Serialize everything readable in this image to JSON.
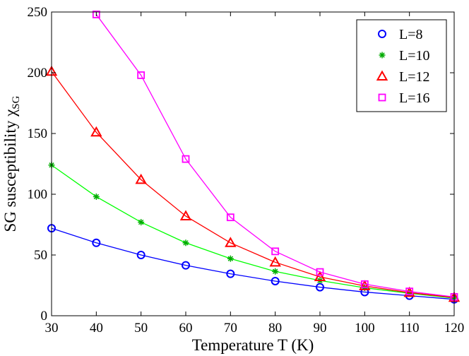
{
  "chart_data": {
    "type": "line",
    "xlabel": "Temperature T (K)",
    "ylabel": "SG susceptibility χ",
    "ylabel_sub": "SG",
    "xlim": [
      30,
      120
    ],
    "ylim": [
      0,
      250
    ],
    "xticks": [
      "30",
      "40",
      "50",
      "60",
      "70",
      "80",
      "90",
      "100",
      "110",
      "120"
    ],
    "yticks": [
      "0",
      "50",
      "100",
      "150",
      "200",
      "250"
    ],
    "legend_position": "top-right",
    "grid": false,
    "x": [
      30,
      40,
      50,
      60,
      70,
      80,
      90,
      100,
      110,
      120
    ],
    "series": [
      {
        "name": "L=8",
        "marker": "circle",
        "color": "#0000ff",
        "values": [
          72,
          60,
          50,
          41.5,
          34.5,
          28.5,
          23.5,
          19.5,
          16.5,
          13.5
        ]
      },
      {
        "name": "L=10",
        "marker": "star",
        "color": "#00aa00",
        "line_color": "#00ff00",
        "values": [
          124,
          98,
          77,
          60,
          47,
          36.5,
          29,
          23,
          18.5,
          14.5
        ]
      },
      {
        "name": "L=12",
        "marker": "triangle",
        "color": "#ff0000",
        "values": [
          201,
          151,
          112,
          82,
          60,
          44,
          32,
          24.5,
          19,
          15
        ]
      },
      {
        "name": "L=16",
        "marker": "square",
        "color": "#ff00ff",
        "values": [
          null,
          248,
          198,
          129,
          81,
          53,
          36,
          26,
          20,
          15.5
        ]
      }
    ]
  }
}
